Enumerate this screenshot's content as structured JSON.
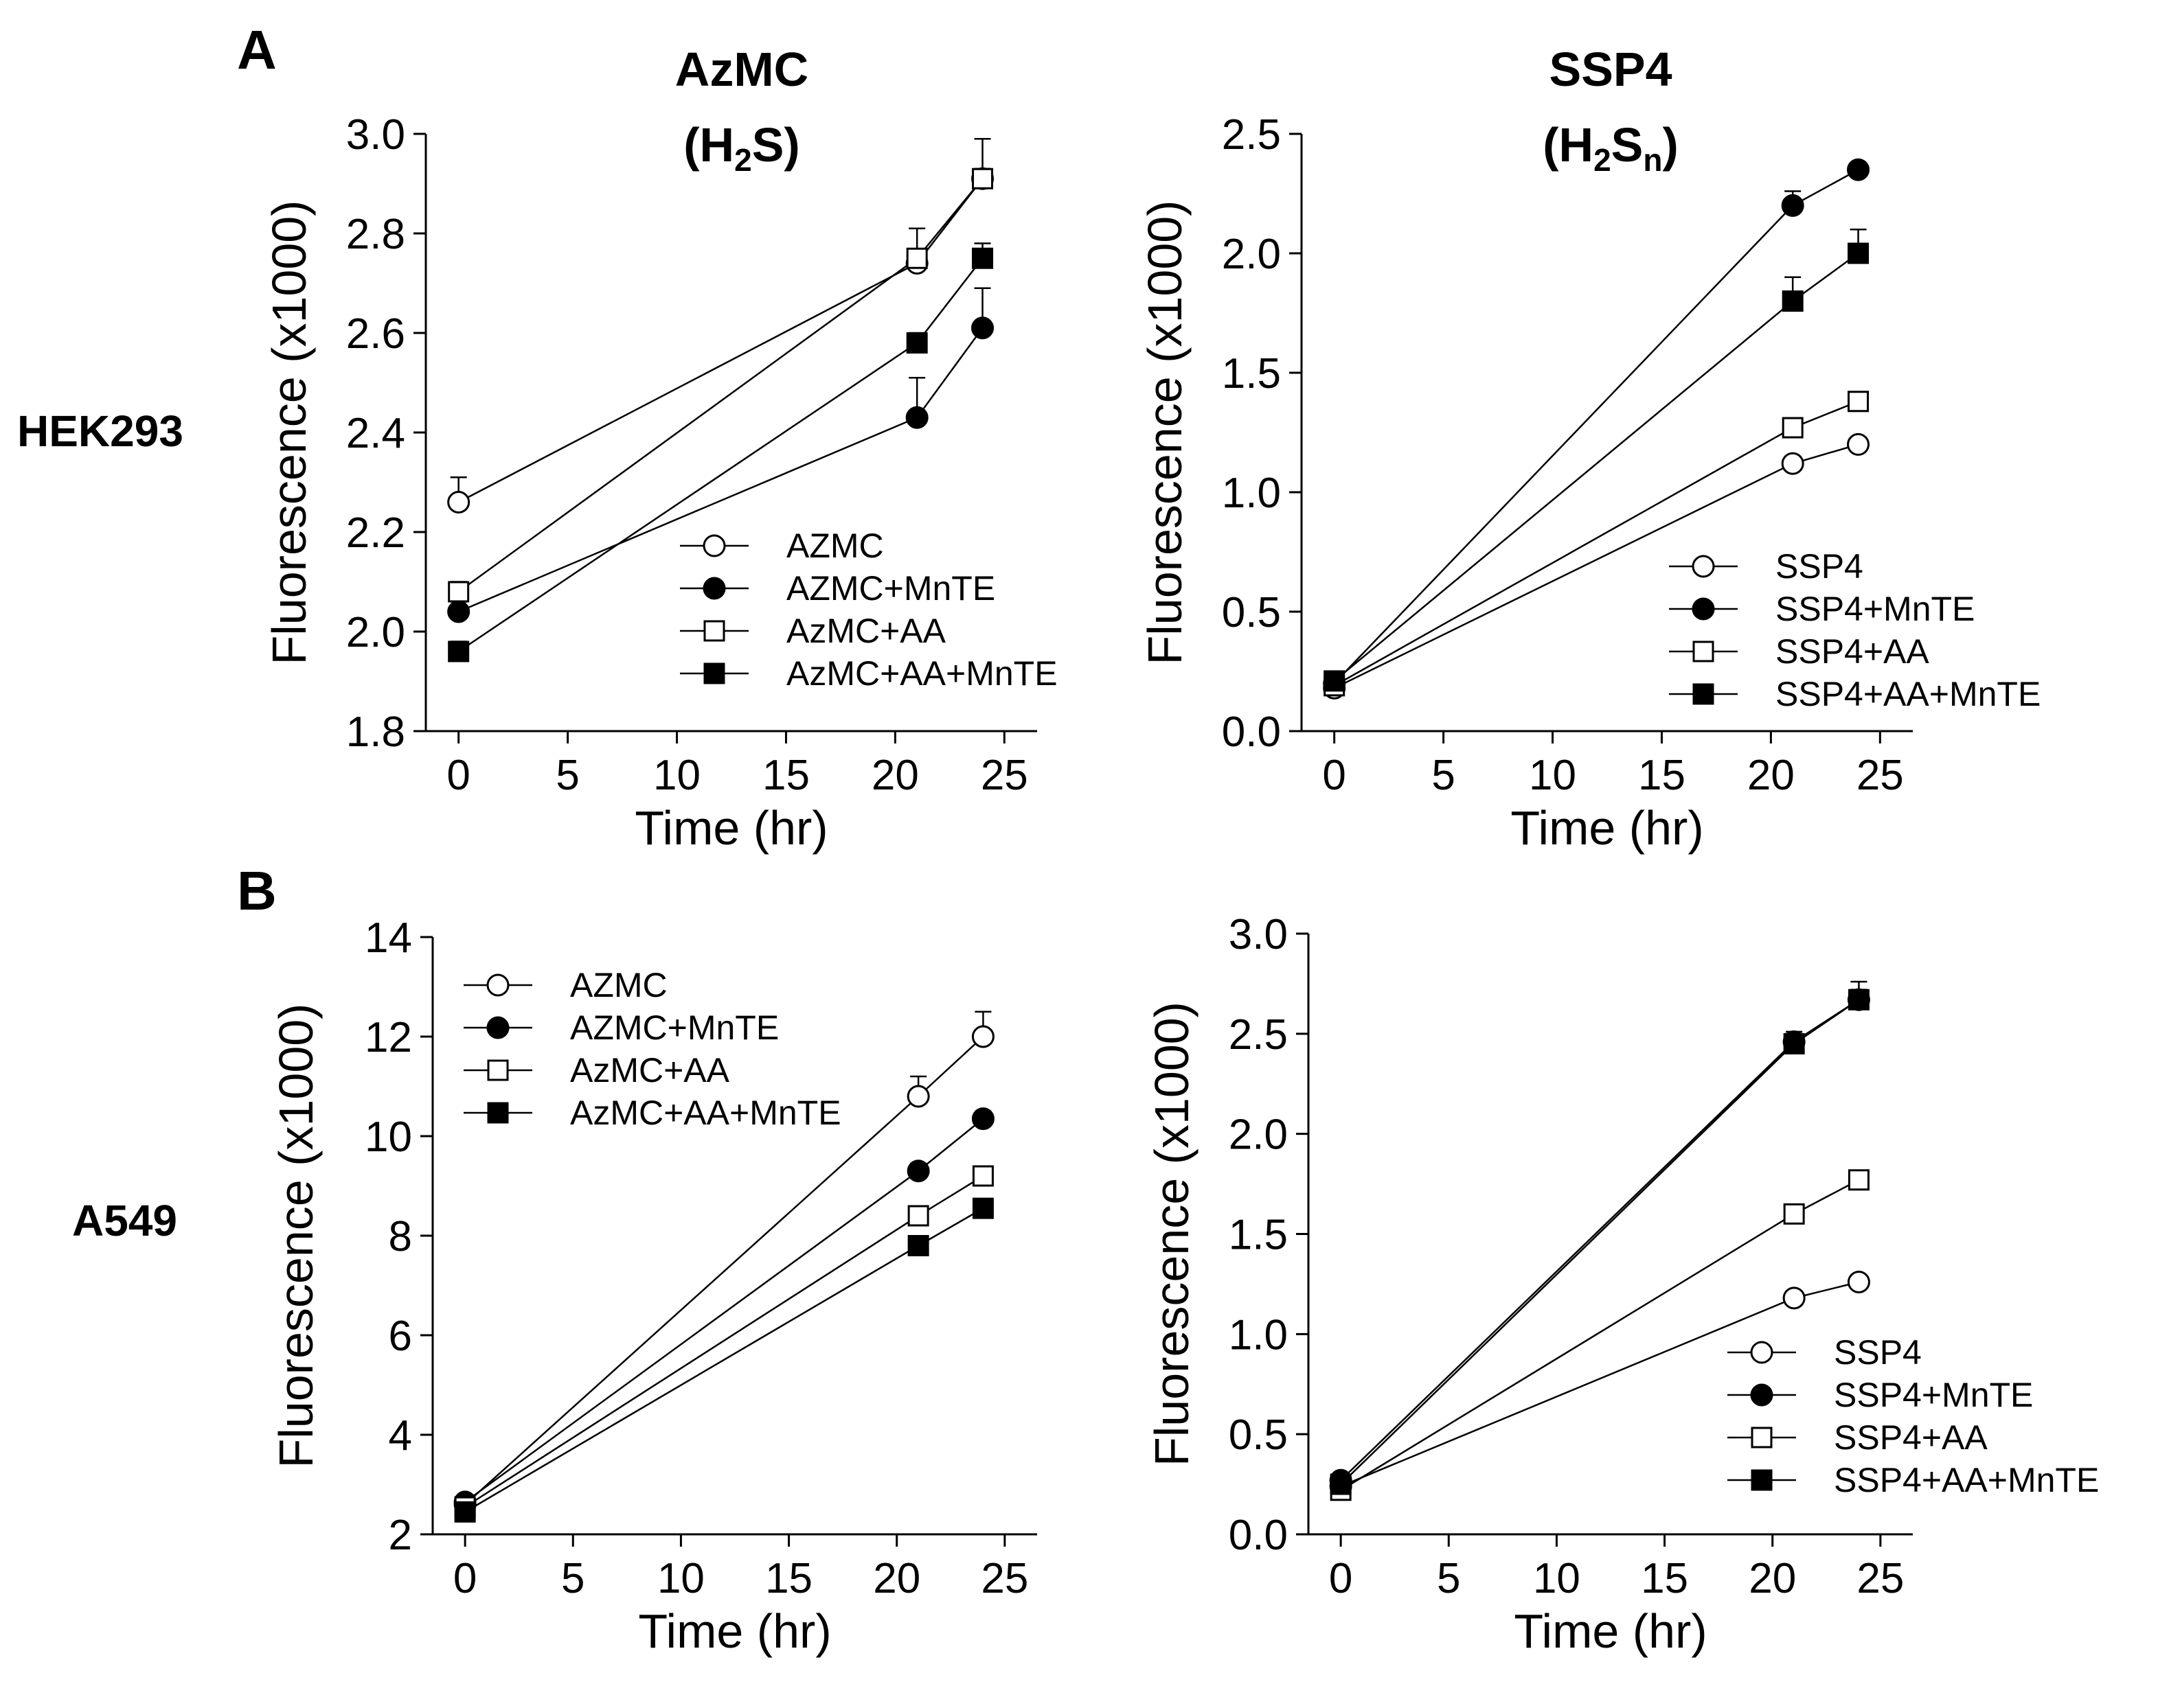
{
  "figure": {
    "panels": [
      {
        "label": "A"
      },
      {
        "label": "B"
      }
    ],
    "columns": [
      {
        "title": "AzMC",
        "subtitle_base": "(H",
        "subtitle_sub1": "2",
        "subtitle_mid": "S",
        "subtitle_sub2": "",
        "subtitle_end": ")"
      },
      {
        "title": "SSP4",
        "subtitle_base": "(H",
        "subtitle_sub1": "2",
        "subtitle_mid": "S",
        "subtitle_sub2": "n",
        "subtitle_end": ")"
      }
    ],
    "rows": [
      {
        "label": "HEK293"
      },
      {
        "label": "A549"
      }
    ]
  },
  "colors": {
    "ink": "#000000",
    "background": "#ffffff"
  },
  "marker_icons": {
    "open-circle": "circle-open-icon",
    "filled-circle": "circle-filled-icon",
    "open-square": "square-open-icon",
    "filled-square": "square-filled-icon"
  },
  "chart_data": [
    {
      "id": "hek-azmc",
      "type": "line",
      "cell_line": "HEK293",
      "probe": "AzMC",
      "xlabel": "Time (hr)",
      "ylabel": "Fluorescence (x1000)",
      "xlim": [
        -1.5,
        26.5
      ],
      "ylim": [
        1.8,
        3.0
      ],
      "xticks": [
        0,
        5,
        10,
        15,
        20,
        25
      ],
      "yticks": [
        1.8,
        2.0,
        2.2,
        2.4,
        2.6,
        2.8,
        3.0
      ],
      "ytick_labels": [
        "1.8",
        "2.0",
        "2.2",
        "2.4",
        "2.6",
        "2.8",
        "3.0"
      ],
      "legend_position": "lower-right",
      "x": [
        0,
        21,
        24
      ],
      "series": [
        {
          "name": "AZMC",
          "marker": "open-circle",
          "values": [
            2.26,
            2.74,
            2.91
          ],
          "err": [
            0.05,
            0.02,
            0.02
          ]
        },
        {
          "name": "AZMC+MnTE",
          "marker": "filled-circle",
          "values": [
            2.04,
            2.43,
            2.61
          ],
          "err": [
            0.02,
            0.08,
            0.08
          ]
        },
        {
          "name": "AzMC+AA",
          "marker": "open-square",
          "values": [
            2.08,
            2.75,
            2.91
          ],
          "err": [
            0.02,
            0.06,
            0.08
          ]
        },
        {
          "name": "AzMC+AA+MnTE",
          "marker": "filled-square",
          "values": [
            1.96,
            2.58,
            2.75
          ],
          "err": [
            0.02,
            0.02,
            0.03
          ]
        }
      ]
    },
    {
      "id": "hek-ssp4",
      "type": "line",
      "cell_line": "HEK293",
      "probe": "SSP4",
      "xlabel": "Time (hr)",
      "ylabel": "Fluorescence (x1000)",
      "xlim": [
        -1.5,
        26.5
      ],
      "ylim": [
        0.0,
        2.5
      ],
      "xticks": [
        0,
        5,
        10,
        15,
        20,
        25
      ],
      "yticks": [
        0.0,
        0.5,
        1.0,
        1.5,
        2.0,
        2.5
      ],
      "ytick_labels": [
        "0.0",
        "0.5",
        "1.0",
        "1.5",
        "2.0",
        "2.5"
      ],
      "legend_position": "lower-right",
      "x": [
        0,
        21,
        24
      ],
      "series": [
        {
          "name": "SSP4",
          "marker": "open-circle",
          "values": [
            0.18,
            1.12,
            1.2
          ],
          "err": [
            0.02,
            0.03,
            0.03
          ]
        },
        {
          "name": "SSP4+MnTE",
          "marker": "filled-circle",
          "values": [
            0.2,
            2.2,
            2.35
          ],
          "err": [
            0.02,
            0.06,
            0.03
          ]
        },
        {
          "name": "SSP4+AA",
          "marker": "open-square",
          "values": [
            0.19,
            1.27,
            1.38
          ],
          "err": [
            0.02,
            0.04,
            0.03
          ]
        },
        {
          "name": "SSP4+AA+MnTE",
          "marker": "filled-square",
          "values": [
            0.21,
            1.8,
            2.0
          ],
          "err": [
            0.02,
            0.1,
            0.1
          ]
        }
      ]
    },
    {
      "id": "a549-azmc",
      "type": "line",
      "cell_line": "A549",
      "probe": "AzMC",
      "xlabel": "Time (hr)",
      "ylabel": "Fluorescence (x1000)",
      "xlim": [
        -1.5,
        26.5
      ],
      "ylim": [
        2,
        14
      ],
      "xticks": [
        0,
        5,
        10,
        15,
        20,
        25
      ],
      "yticks": [
        2,
        4,
        6,
        8,
        10,
        12,
        14
      ],
      "ytick_labels": [
        "2",
        "4",
        "6",
        "8",
        "10",
        "12",
        "14"
      ],
      "legend_position": "top-left",
      "x": [
        0,
        21,
        24
      ],
      "series": [
        {
          "name": "AZMC",
          "marker": "open-circle",
          "values": [
            2.6,
            10.8,
            12.0
          ],
          "err": [
            0.1,
            0.4,
            0.5
          ]
        },
        {
          "name": "AZMC+MnTE",
          "marker": "filled-circle",
          "values": [
            2.65,
            9.3,
            10.35
          ],
          "err": [
            0.1,
            0.15,
            0.15
          ]
        },
        {
          "name": "AzMC+AA",
          "marker": "open-square",
          "values": [
            2.55,
            8.4,
            9.2
          ],
          "err": [
            0.1,
            0.15,
            0.15
          ]
        },
        {
          "name": "AzMC+AA+MnTE",
          "marker": "filled-square",
          "values": [
            2.45,
            7.8,
            8.55
          ],
          "err": [
            0.1,
            0.15,
            0.15
          ]
        }
      ]
    },
    {
      "id": "a549-ssp4",
      "type": "line",
      "cell_line": "A549",
      "probe": "SSP4",
      "xlabel": "Time (hr)",
      "ylabel": "Fluorescence (x1000)",
      "xlim": [
        -1.5,
        26.5
      ],
      "ylim": [
        0.0,
        3.0
      ],
      "xticks": [
        0,
        5,
        10,
        15,
        20,
        25
      ],
      "yticks": [
        0.0,
        0.5,
        1.0,
        1.5,
        2.0,
        2.5,
        3.0
      ],
      "ytick_labels": [
        "0.0",
        "0.5",
        "1.0",
        "1.5",
        "2.0",
        "2.5",
        "3.0"
      ],
      "legend_position": "lower-right",
      "x": [
        0,
        21,
        24
      ],
      "series": [
        {
          "name": "SSP4",
          "marker": "open-circle",
          "values": [
            0.24,
            1.18,
            1.26
          ],
          "err": [
            0.02,
            0.03,
            0.03
          ]
        },
        {
          "name": "SSP4+MnTE",
          "marker": "filled-circle",
          "values": [
            0.27,
            2.46,
            2.67
          ],
          "err": [
            0.02,
            0.05,
            0.09
          ]
        },
        {
          "name": "SSP4+AA",
          "marker": "open-square",
          "values": [
            0.22,
            1.6,
            1.77
          ],
          "err": [
            0.02,
            0.03,
            0.03
          ]
        },
        {
          "name": "SSP4+AA+MnTE",
          "marker": "filled-square",
          "values": [
            0.25,
            2.45,
            2.67
          ],
          "err": [
            0.02,
            0.05,
            0.05
          ]
        }
      ]
    }
  ]
}
